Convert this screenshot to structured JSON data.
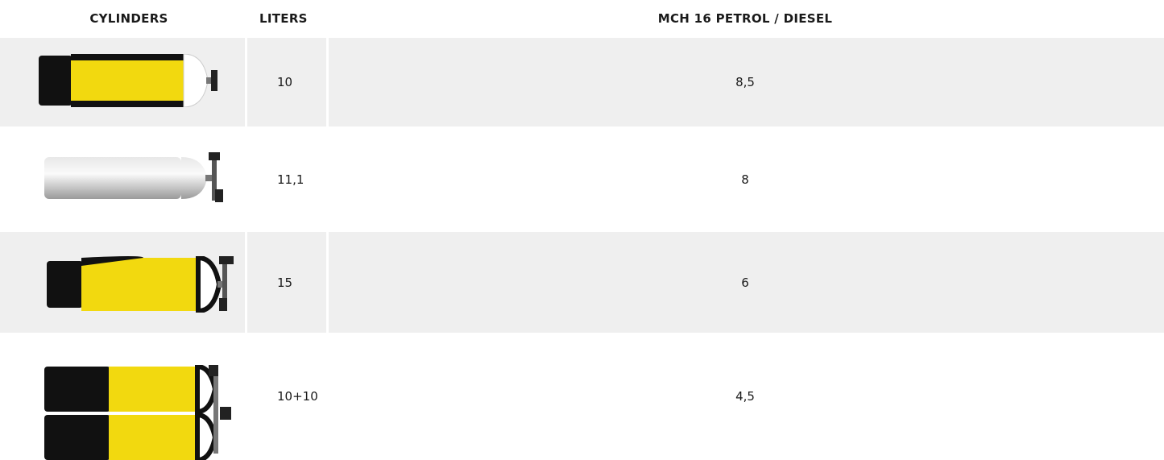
{
  "table": {
    "header": [
      "CYLINDERS",
      "LITERS",
      "MCH 16 PETROL / DIESEL"
    ],
    "rows": [
      [
        "10",
        "8,5"
      ],
      [
        "11,1",
        "8"
      ],
      [
        "15",
        "6"
      ],
      [
        "10+10",
        "4,5"
      ]
    ]
  }
}
